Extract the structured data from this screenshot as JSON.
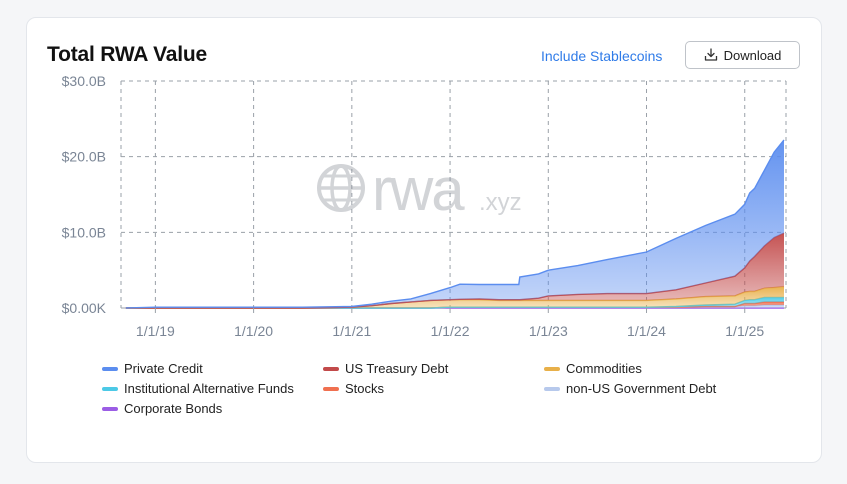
{
  "header": {
    "title": "Total RWA Value",
    "stablecoins_label": "Include Stablecoins",
    "download_label": "Download"
  },
  "watermark": {
    "text": "rwa",
    "suffix": ".xyz"
  },
  "colors": {
    "private_credit": "#5b8def",
    "us_treasury": "#c24a4a",
    "commodities": "#e8b04a",
    "institutional": "#4cc9e6",
    "stocks": "#f07050",
    "non_us_gov": "#b7c9ec",
    "corporate": "#9b5de5",
    "link": "#2f7be8"
  },
  "chart_data": {
    "type": "area",
    "stacked": true,
    "y_tick_labels": [
      "$0.00K",
      "$10.0B",
      "$20.0B",
      "$30.0B"
    ],
    "y_ticks": [
      0,
      10,
      20,
      30
    ],
    "ylim": [
      0,
      30
    ],
    "x_tick_labels": [
      "1/1/19",
      "1/1/20",
      "1/1/21",
      "1/1/22",
      "1/1/23",
      "1/1/24",
      "1/1/25"
    ],
    "x_ticks": [
      2019,
      2020,
      2021,
      2022,
      2023,
      2024,
      2025
    ],
    "xlim": [
      2018.65,
      2025.42
    ],
    "grid": true,
    "legend_position": "bottom",
    "x": [
      2018.7,
      2019.0,
      2019.5,
      2020.0,
      2020.5,
      2021.0,
      2021.2,
      2021.4,
      2021.6,
      2021.8,
      2022.0,
      2022.1,
      2022.3,
      2022.5,
      2022.7,
      2022.71,
      2022.9,
      2023.0,
      2023.3,
      2023.6,
      2024.0,
      2024.3,
      2024.6,
      2024.9,
      2025.0,
      2025.05,
      2025.1,
      2025.2,
      2025.3,
      2025.4
    ],
    "series": [
      {
        "name": "Corporate Bonds",
        "color_key": "corporate",
        "values": [
          0,
          0,
          0,
          0,
          0,
          0,
          0,
          0,
          0,
          0,
          0,
          0,
          0,
          0,
          0,
          0,
          0,
          0,
          0,
          0,
          0,
          0,
          0,
          0,
          0,
          0,
          0,
          0,
          0,
          0
        ]
      },
      {
        "name": "non-US Government Debt",
        "color_key": "non_us_gov",
        "values": [
          0,
          0,
          0,
          0,
          0,
          0,
          0,
          0,
          0,
          0,
          0.1,
          0.1,
          0.1,
          0.1,
          0.1,
          0.1,
          0.1,
          0.1,
          0.1,
          0.1,
          0.1,
          0.1,
          0.2,
          0.2,
          0.3,
          0.3,
          0.3,
          0.4,
          0.4,
          0.4
        ]
      },
      {
        "name": "Stocks",
        "color_key": "stocks",
        "values": [
          0,
          0,
          0,
          0,
          0,
          0,
          0,
          0,
          0,
          0,
          0,
          0,
          0,
          0,
          0,
          0,
          0,
          0,
          0,
          0,
          0,
          0,
          0,
          0,
          0.3,
          0.3,
          0.3,
          0.4,
          0.4,
          0.4
        ]
      },
      {
        "name": "Institutional Alternative Funds",
        "color_key": "institutional",
        "values": [
          0,
          0,
          0,
          0,
          0,
          0,
          0,
          0,
          0,
          0,
          0,
          0,
          0,
          0,
          0,
          0,
          0,
          0,
          0,
          0,
          0,
          0.1,
          0.2,
          0.3,
          0.4,
          0.5,
          0.5,
          0.6,
          0.6,
          0.6
        ]
      },
      {
        "name": "Commodities",
        "color_key": "commodities",
        "values": [
          0,
          0,
          0,
          0,
          0,
          0.1,
          0.3,
          0.6,
          0.8,
          1.0,
          1.0,
          1.0,
          1.0,
          0.9,
          0.9,
          0.9,
          0.9,
          0.9,
          0.9,
          0.9,
          0.9,
          1.0,
          1.1,
          1.1,
          1.1,
          1.1,
          1.1,
          1.2,
          1.3,
          1.4
        ]
      },
      {
        "name": "US Treasury Debt",
        "color_key": "us_treasury",
        "values": [
          0,
          0,
          0,
          0,
          0,
          0,
          0,
          0,
          0,
          0,
          0,
          0.05,
          0.1,
          0.1,
          0.1,
          0.1,
          0.3,
          0.6,
          0.8,
          0.9,
          0.9,
          1.2,
          1.8,
          2.6,
          3.2,
          4.0,
          4.6,
          5.6,
          6.6,
          7.1
        ]
      },
      {
        "name": "Private Credit",
        "color_key": "private_credit",
        "values": [
          0,
          0.1,
          0.1,
          0.1,
          0.1,
          0.1,
          0.2,
          0.3,
          0.4,
          0.9,
          1.6,
          2.0,
          1.9,
          2.0,
          2.0,
          3.0,
          3.2,
          3.4,
          3.8,
          4.5,
          5.5,
          6.8,
          7.6,
          8.2,
          8.4,
          9.0,
          9.0,
          10.0,
          11.3,
          12.3
        ]
      }
    ],
    "legend_order": [
      "Private Credit",
      "US Treasury Debt",
      "Commodities",
      "Institutional Alternative Funds",
      "Stocks",
      "non-US Government Debt",
      "Corporate Bonds"
    ]
  }
}
